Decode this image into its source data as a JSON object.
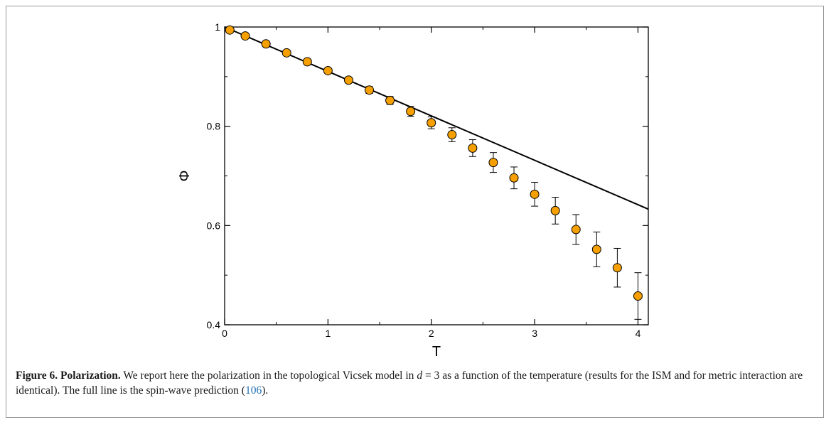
{
  "chart_data": {
    "type": "scatter",
    "xlabel": "T",
    "ylabel": "Φ",
    "xlim": [
      0,
      4.1
    ],
    "ylim": [
      0.4,
      1.0
    ],
    "x_ticks": [
      "0",
      "1",
      "2",
      "3",
      "4"
    ],
    "y_ticks": [
      "0.4",
      "0.6",
      "0.8",
      "1"
    ],
    "grid": false,
    "marker_color": "#f5a000",
    "line_color": "#000000",
    "series": [
      {
        "type": "scatter_errorbar",
        "x": [
          0.05,
          0.2,
          0.4,
          0.6,
          0.8,
          1.0,
          1.2,
          1.4,
          1.6,
          1.8,
          2.0,
          2.2,
          2.4,
          2.6,
          2.8,
          3.0,
          3.2,
          3.4,
          3.6,
          3.8,
          4.0
        ],
        "y": [
          0.994,
          0.982,
          0.966,
          0.948,
          0.93,
          0.912,
          0.893,
          0.873,
          0.852,
          0.83,
          0.807,
          0.783,
          0.756,
          0.727,
          0.696,
          0.663,
          0.63,
          0.592,
          0.552,
          0.515,
          0.458
        ],
        "yerr": [
          0.003,
          0.003,
          0.003,
          0.004,
          0.004,
          0.004,
          0.005,
          0.007,
          0.008,
          0.01,
          0.012,
          0.014,
          0.017,
          0.02,
          0.022,
          0.024,
          0.027,
          0.03,
          0.035,
          0.039,
          0.047
        ]
      },
      {
        "type": "line",
        "x": [
          0.0,
          4.1
        ],
        "y": [
          1.0,
          0.633
        ]
      }
    ]
  },
  "caption": {
    "label": "Figure 6. Polarization.",
    "text_before_math": " We report here the polarization in the topological Vicsek model in ",
    "math": "d",
    "math_eq": " = 3",
    "text_after_math": " as a function of the temperature (results for the ISM and for metric interaction are identical). The full line is the spin-wave prediction (",
    "ref": "106",
    "text_end": ")."
  }
}
